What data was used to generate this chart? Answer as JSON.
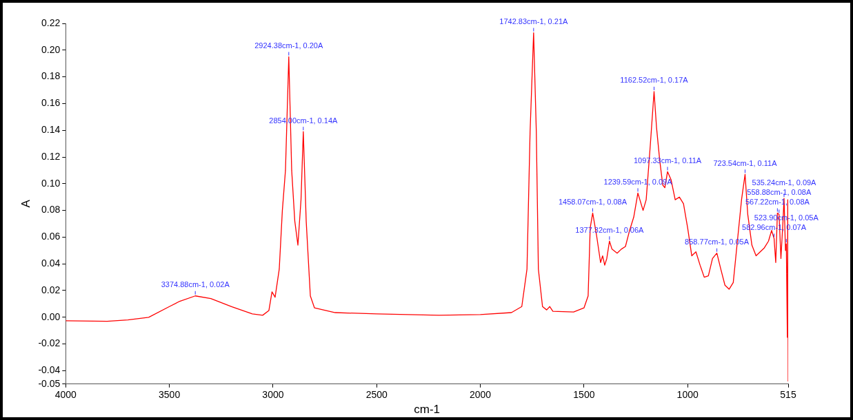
{
  "chart_data": {
    "type": "line",
    "xlabel": "cm-1",
    "ylabel": "A",
    "x": [
      4000,
      3800,
      3700,
      3600,
      3500,
      3450,
      3375,
      3300,
      3200,
      3100,
      3050,
      3020,
      3005,
      2990,
      2970,
      2955,
      2940,
      2924,
      2910,
      2895,
      2880,
      2865,
      2854,
      2840,
      2820,
      2800,
      2700,
      2500,
      2200,
      2000,
      1850,
      1800,
      1775,
      1760,
      1743,
      1730,
      1720,
      1700,
      1680,
      1665,
      1650,
      1550,
      1500,
      1480,
      1470,
      1458,
      1440,
      1420,
      1410,
      1400,
      1390,
      1377,
      1365,
      1340,
      1320,
      1300,
      1280,
      1260,
      1240,
      1215,
      1200,
      1180,
      1162,
      1150,
      1135,
      1120,
      1110,
      1097,
      1080,
      1060,
      1040,
      1020,
      1000,
      980,
      960,
      940,
      920,
      900,
      880,
      859,
      840,
      820,
      800,
      780,
      760,
      740,
      723,
      710,
      690,
      670,
      650,
      630,
      610,
      595,
      583,
      575,
      567,
      559,
      550,
      540,
      535,
      528,
      524,
      519,
      517,
      515
    ],
    "series": [
      {
        "color": "#ff0000",
        "values": [
          -0.0026,
          -0.003,
          -0.002,
          0.0,
          0.008,
          0.012,
          0.016,
          0.014,
          0.008,
          0.0025,
          0.0015,
          0.005,
          0.019,
          0.015,
          0.036,
          0.08,
          0.11,
          0.195,
          0.11,
          0.072,
          0.054,
          0.088,
          0.139,
          0.072,
          0.016,
          0.007,
          0.0035,
          0.0025,
          0.0015,
          0.002,
          0.0035,
          0.008,
          0.036,
          0.139,
          0.213,
          0.139,
          0.036,
          0.008,
          0.0055,
          0.008,
          0.0045,
          0.004,
          0.007,
          0.016,
          0.067,
          0.078,
          0.062,
          0.041,
          0.046,
          0.039,
          0.044,
          0.057,
          0.051,
          0.048,
          0.051,
          0.053,
          0.065,
          0.075,
          0.093,
          0.08,
          0.088,
          0.129,
          0.169,
          0.142,
          0.118,
          0.099,
          0.097,
          0.109,
          0.103,
          0.088,
          0.09,
          0.085,
          0.067,
          0.046,
          0.049,
          0.039,
          0.03,
          0.031,
          0.044,
          0.048,
          0.036,
          0.024,
          0.021,
          0.026,
          0.057,
          0.088,
          0.107,
          0.077,
          0.054,
          0.046,
          0.049,
          0.052,
          0.057,
          0.065,
          0.059,
          0.041,
          0.078,
          0.077,
          0.044,
          0.072,
          0.089,
          0.05,
          0.055,
          -0.015,
          0.088,
          -0.048
        ]
      }
    ],
    "xlim": [
      4000,
      515
    ],
    "xticks": [
      4000,
      3500,
      3000,
      2500,
      2000,
      1500,
      1000,
      515
    ],
    "ylim": [
      -0.05,
      0.22
    ],
    "yticks": [
      {
        "value": -0.05,
        "label": "-0.05"
      },
      {
        "value": -0.04,
        "label": "-0.04"
      },
      {
        "value": -0.02,
        "label": "-0.02"
      },
      {
        "value": 0,
        "label": "0.00"
      },
      {
        "value": 0.02,
        "label": "0.02"
      },
      {
        "value": 0.04,
        "label": "0.04"
      },
      {
        "value": 0.06,
        "label": "0.06"
      },
      {
        "value": 0.08,
        "label": "0.08"
      },
      {
        "value": 0.1,
        "label": "0.10"
      },
      {
        "value": 0.12,
        "label": "0.12"
      },
      {
        "value": 0.14,
        "label": "0.14"
      },
      {
        "value": 0.16,
        "label": "0.16"
      },
      {
        "value": 0.18,
        "label": "0.18"
      },
      {
        "value": 0.2,
        "label": "0.20"
      },
      {
        "value": 0.22,
        "label": "0.22"
      }
    ],
    "grid": false,
    "legend": false,
    "marker": "none",
    "line_style": "solid",
    "annotations": [
      {
        "text": "3374.88cm-1, 0.02A",
        "x": 3375,
        "y": 0.016
      },
      {
        "text": "2924.38cm-1, 0.20A",
        "x": 2924,
        "y": 0.195
      },
      {
        "text": "2854.00cm-1, 0.14A",
        "x": 2854,
        "y": 0.139
      },
      {
        "text": "1742.83cm-1, 0.21A",
        "x": 1743,
        "y": 0.213
      },
      {
        "text": "1458.07cm-1, 0.08A",
        "x": 1458,
        "y": 0.078
      },
      {
        "text": "1377.32cm-1, 0.06A",
        "x": 1377,
        "y": 0.057
      },
      {
        "text": "1239.59cm-1, 0.09A",
        "x": 1240,
        "y": 0.093
      },
      {
        "text": "1162.52cm-1, 0.17A",
        "x": 1162,
        "y": 0.169
      },
      {
        "text": "1097.33cm-1, 0.11A",
        "x": 1097,
        "y": 0.109
      },
      {
        "text": "858.77cm-1, 0.05A",
        "x": 859,
        "y": 0.048
      },
      {
        "text": "723.54cm-1, 0.11A",
        "x": 723,
        "y": 0.107
      },
      {
        "text": "582.96cm-1, 0.07A",
        "x": 583,
        "y": 0.059
      },
      {
        "text": "567.22cm-1, 0.08A",
        "x": 567,
        "y": 0.078
      },
      {
        "text": "558.88cm-1, 0.08A",
        "x": 559,
        "y": 0.077
      },
      {
        "text": "535.24cm-1, 0.09A",
        "x": 535,
        "y": 0.089
      },
      {
        "text": "523.90cm-1, 0.05A",
        "x": 524,
        "y": 0.055
      }
    ]
  }
}
